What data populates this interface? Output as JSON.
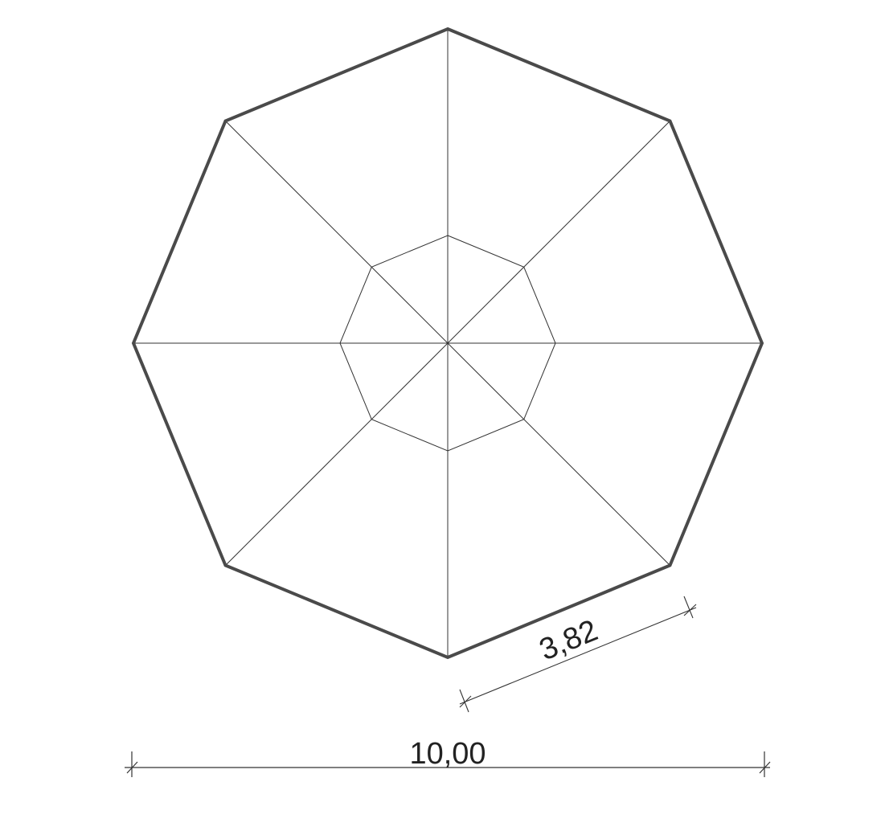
{
  "drawing": {
    "shape": "octagon",
    "outline_color": "#4a4a4a",
    "line_color": "#333333",
    "dimensions": {
      "overall_width": "10,00",
      "side_length": "3,82"
    }
  }
}
